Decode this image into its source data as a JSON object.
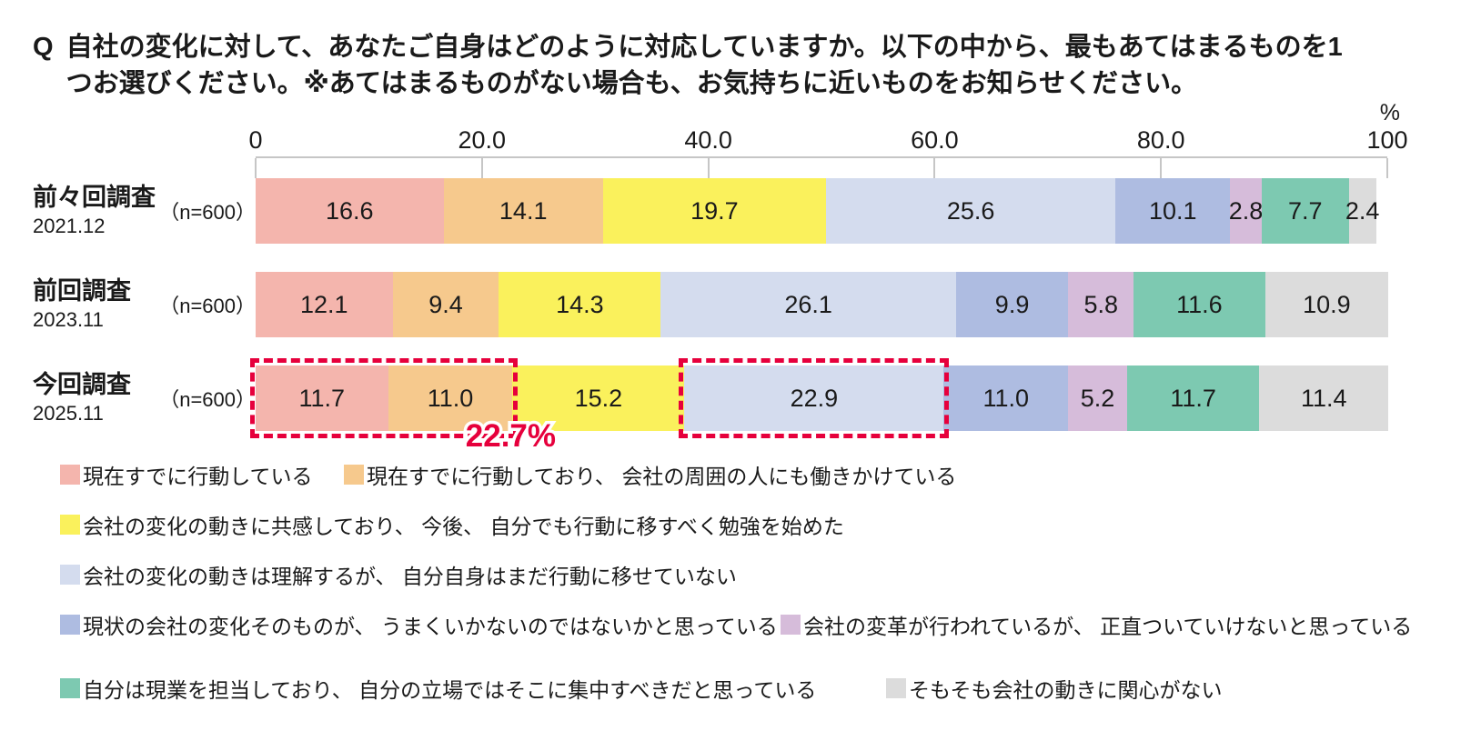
{
  "title": {
    "prefix": "Q",
    "line1": "自社の変化に対して、あなたご自身はどのように対応していますか。以下の中から、最もあてはまるものを1",
    "line2": "つお選びください。※あてはまるものがない場合も、お気持ちに近いものをお知らせください。"
  },
  "chart_data": {
    "type": "bar",
    "stacked": true,
    "orientation": "horizontal",
    "unit": "%",
    "xlim": [
      0,
      100
    ],
    "x_ticks": [
      {
        "value": 0,
        "label": "0"
      },
      {
        "value": 20,
        "label": "20.0"
      },
      {
        "value": 40,
        "label": "40.0"
      },
      {
        "value": 60,
        "label": "60.0"
      },
      {
        "value": 80,
        "label": "80.0"
      },
      {
        "value": 100,
        "label": "100"
      }
    ],
    "categories": [
      "現在すでに行動している",
      "現在すでに行動しており、 会社の周囲の人にも働きかけている",
      "会社の変化の動きに共感しており、 今後、 自分でも行動に移すべく勉強を始めた",
      "会社の変化の動きは理解するが、 自分自身はまだ行動に移せていない",
      "現状の会社の変化そのものが、 うまくいかないのではないかと思っている",
      "会社の変革が行われているが、 正直ついていけないと思っている",
      "自分は現業を担当しており、 自分の立場ではそこに集中すべきだと思っている",
      "そもそも会社の動きに関心がない"
    ],
    "colors": [
      "#f4b5ad",
      "#f6c98d",
      "#faf15c",
      "#d4dcee",
      "#aebce1",
      "#d6bcda",
      "#7dc9b1",
      "#dcdcdc"
    ],
    "rows": [
      {
        "name": "前々回調査",
        "date": "2021.12",
        "sample": "（n=600）",
        "values": [
          16.6,
          14.1,
          19.7,
          25.6,
          10.1,
          2.8,
          7.7,
          2.4
        ]
      },
      {
        "name": "前回調査",
        "date": "2023.11",
        "sample": "（n=600）",
        "values": [
          12.1,
          9.4,
          14.3,
          26.1,
          9.9,
          5.8,
          11.6,
          10.9
        ]
      },
      {
        "name": "今回調査",
        "date": "2025.11",
        "sample": "（n=600）",
        "values": [
          11.7,
          11.0,
          15.2,
          22.9,
          11.0,
          5.2,
          11.7,
          11.4
        ]
      }
    ],
    "highlights": {
      "color": "#e6003c",
      "boxes": [
        {
          "row_index": 2,
          "from_segment": 0,
          "to_segment": 1
        },
        {
          "row_index": 2,
          "from_segment": 3,
          "to_segment": 3
        }
      ],
      "callout": {
        "text": "22.7%",
        "row_index": 2,
        "anchor_pct": 22.7
      }
    }
  }
}
